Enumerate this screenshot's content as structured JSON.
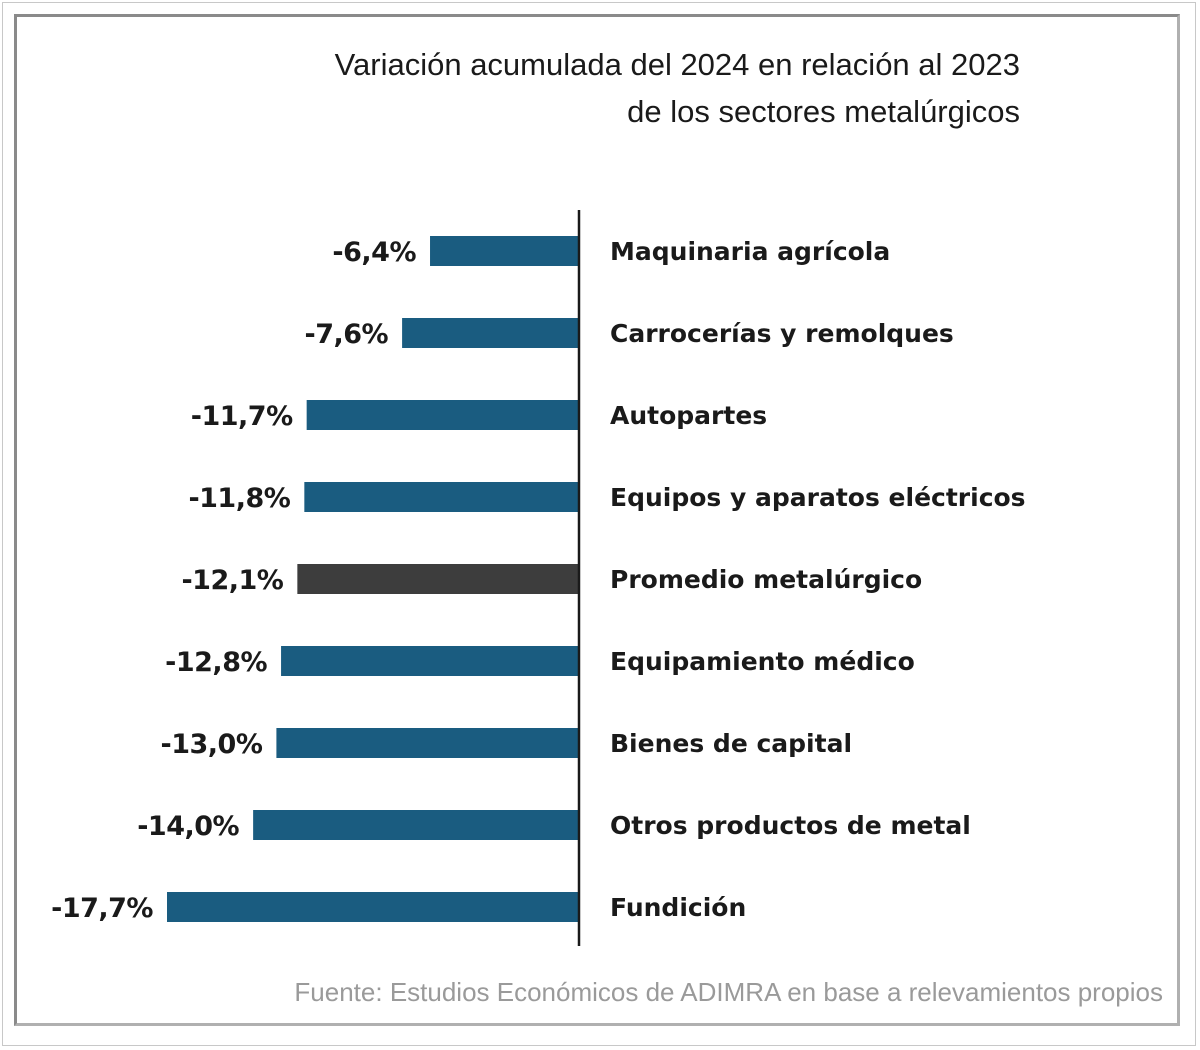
{
  "chart_data": {
    "type": "bar",
    "orientation": "horizontal",
    "title": [
      "Variación acumulada del 2024 en relación al 2023",
      "de los sectores metalúrgicos"
    ],
    "categories": [
      "Maquinaria agrícola",
      "Carrocerías y remolques",
      "Autopartes",
      "Equipos y aparatos eléctricos",
      "Promedio metalúrgico",
      "Equipamiento médico",
      "Bienes de capital",
      "Otros productos de metal",
      "Fundición"
    ],
    "values": [
      -6.4,
      -7.6,
      -11.7,
      -11.8,
      -12.1,
      -12.8,
      -13.0,
      -14.0,
      -17.7
    ],
    "labels": [
      "-6,4%",
      "-7,6%",
      "-11,7%",
      "-11,8%",
      "-12,1%",
      "-12,8%",
      "-13,0%",
      "-14,0%",
      "-17,7%"
    ],
    "highlight_index": 4,
    "xlabel": "",
    "ylabel": "",
    "xlim": [
      -17.7,
      0
    ],
    "grid": false,
    "source": "Fuente: Estudios Económicos de ADIMRA en base a relevamientos propios"
  },
  "colors": {
    "bar": "#1a5c80",
    "highlight": "#3d3d3d",
    "axis": "#1a1a1a"
  }
}
